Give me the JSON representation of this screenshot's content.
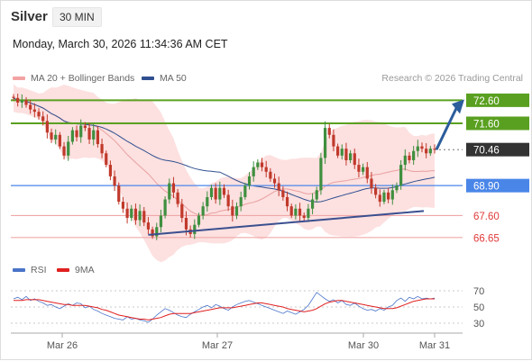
{
  "header": {
    "instrument": "Silver",
    "timeframe": "30 MIN",
    "datetime": "Monday, March 30, 2026 11:34:36 AM CET",
    "credit": "Research © 2026 Trading Central"
  },
  "legend": {
    "bollinger_label": "MA 20 + Bollinger Bands",
    "ma50_label": "MA 50",
    "rsi_label": "RSI",
    "rsi_ma_label": "9MA"
  },
  "colors": {
    "resistance": "#5aa020",
    "support": "#f0a8a8",
    "support_text": "#e03a3a",
    "pivot": "#4a86e8",
    "last": "#333333",
    "band_fill": "#fde0e0",
    "ma20": "#e9a0a0",
    "ma50": "#2f4f8f",
    "candle_up": "#3f8f3f",
    "candle_down": "#c0392b",
    "trendline": "#3a4f8f",
    "arrow": "#2c5d9c",
    "rsi": "#4a74c9",
    "rsi_ma": "#e02020"
  },
  "chart_data": [
    {
      "type": "candlestick",
      "x_ticks": [
        "Mar 26",
        "Mar 27",
        "Mar 30",
        "Mar 31"
      ],
      "price_range": [
        65.9,
        73.2
      ],
      "levels": [
        {
          "value": 72.6,
          "label": "72.60",
          "kind": "resistance"
        },
        {
          "value": 71.6,
          "label": "71.60",
          "kind": "resistance"
        },
        {
          "value": 70.46,
          "label": "70.46",
          "kind": "last"
        },
        {
          "value": 68.9,
          "label": "68.90",
          "kind": "pivot"
        },
        {
          "value": 67.6,
          "label": "67.60",
          "kind": "support"
        },
        {
          "value": 66.65,
          "label": "66.65",
          "kind": "support"
        }
      ],
      "closes": [
        72.7,
        72.5,
        72.6,
        72.4,
        72.2,
        72.1,
        71.9,
        71.7,
        71.2,
        70.9,
        71.1,
        70.6,
        70.2,
        70.8,
        71.3,
        71.0,
        71.5,
        71.4,
        70.9,
        71.3,
        70.7,
        70.3,
        69.8,
        69.3,
        68.9,
        68.2,
        67.9,
        67.5,
        67.9,
        67.4,
        67.8,
        67.3,
        67.0,
        66.7,
        67.1,
        67.6,
        68.3,
        69.0,
        68.6,
        68.1,
        67.5,
        67.0,
        66.8,
        67.2,
        67.6,
        68.0,
        68.4,
        68.8,
        68.3,
        68.8,
        68.5,
        68.0,
        67.6,
        68.0,
        68.4,
        68.9,
        69.3,
        69.7,
        69.9,
        69.7,
        69.5,
        69.2,
        69.0,
        68.7,
        68.4,
        68.0,
        67.6,
        67.9,
        67.6,
        67.5,
        67.9,
        68.3,
        68.7,
        70.1,
        71.4,
        71.1,
        70.6,
        70.2,
        70.5,
        70.0,
        70.3,
        69.8,
        69.5,
        69.7,
        69.2,
        68.8,
        68.5,
        68.2,
        68.6,
        68.3,
        68.7,
        68.9,
        69.8,
        70.2,
        70.0,
        70.4,
        70.6,
        70.5,
        70.3,
        70.5,
        70.46
      ],
      "rsi": {
        "range": [
          20,
          80
        ],
        "ticks": [
          70,
          50,
          30
        ],
        "values": [
          60,
          62,
          59,
          63,
          58,
          60,
          57,
          55,
          52,
          53,
          50,
          48,
          51,
          54,
          52,
          55,
          54,
          49,
          51,
          47,
          45,
          42,
          40,
          38,
          36,
          35,
          34,
          38,
          35,
          36,
          34,
          33,
          31,
          35,
          40,
          44,
          48,
          46,
          43,
          40,
          38,
          37,
          41,
          44,
          47,
          50,
          52,
          49,
          53,
          51,
          48,
          46,
          50,
          53,
          55,
          57,
          58,
          56,
          54,
          52,
          50,
          48,
          46,
          44,
          42,
          45,
          43,
          41,
          44,
          47,
          52,
          60,
          68,
          64,
          60,
          57,
          59,
          55,
          58,
          53,
          52,
          55,
          51,
          48,
          46,
          47,
          45,
          48,
          46,
          50,
          52,
          58,
          61,
          57,
          62,
          60,
          63,
          60,
          61,
          60,
          61
        ],
        "ma_values": [
          58,
          58,
          58,
          59,
          59,
          59,
          59,
          58,
          57,
          56,
          55,
          54,
          53,
          53,
          52,
          52,
          52,
          52,
          51,
          50,
          49,
          47,
          46,
          44,
          42,
          40,
          39,
          38,
          37,
          36,
          35,
          35,
          34,
          35,
          36,
          37,
          39,
          41,
          42,
          42,
          42,
          42,
          42,
          43,
          44,
          45,
          46,
          47,
          48,
          49,
          49,
          49,
          49,
          50,
          51,
          52,
          53,
          54,
          55,
          55,
          54,
          53,
          52,
          51,
          50,
          48,
          47,
          46,
          45,
          44,
          45,
          46,
          48,
          51,
          54,
          56,
          57,
          58,
          58,
          57,
          56,
          55,
          54,
          53,
          52,
          51,
          50,
          49,
          48,
          48,
          48,
          49,
          51,
          53,
          55,
          57,
          58,
          59,
          60,
          60,
          60
        ]
      }
    }
  ]
}
